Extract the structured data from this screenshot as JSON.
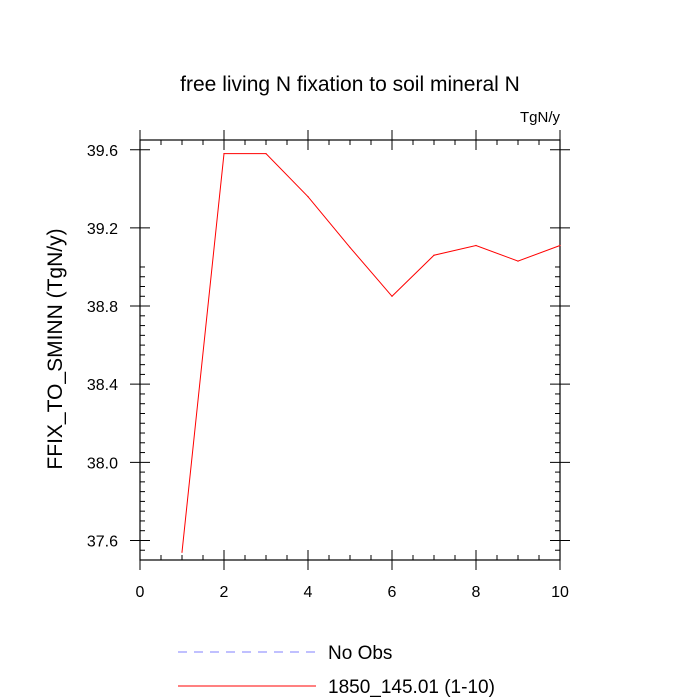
{
  "chart_data": {
    "type": "line",
    "title": "free living N fixation to soil mineral N",
    "units": "TgN/y",
    "ylabel": "FFIX_TO_SMINN  (TgN/y)",
    "xlabel": "",
    "xlim": [
      0,
      10
    ],
    "ylim": [
      37.5,
      39.65
    ],
    "xticks": [
      0,
      2,
      4,
      6,
      8,
      10
    ],
    "xtick_labels": [
      "0",
      "2",
      "4",
      "6",
      "8",
      "10"
    ],
    "yticks": [
      37.6,
      38.0,
      38.4,
      38.8,
      39.2,
      39.6
    ],
    "ytick_labels": [
      "37.6",
      "38.0",
      "38.4",
      "38.8",
      "39.2",
      "39.6"
    ],
    "grid": false,
    "legend_position": "bottom",
    "series": [
      {
        "name": "No Obs",
        "color": "#8080ff",
        "style": "dashed",
        "x": [],
        "y": []
      },
      {
        "name": "1850_145.01 (1-10)",
        "color": "#ff0000",
        "style": "solid",
        "x": [
          1,
          2,
          3,
          4,
          5,
          6,
          7,
          8,
          9,
          10
        ],
        "y": [
          37.54,
          39.58,
          39.58,
          39.36,
          39.1,
          38.85,
          39.06,
          39.11,
          39.03,
          39.11
        ]
      }
    ]
  }
}
